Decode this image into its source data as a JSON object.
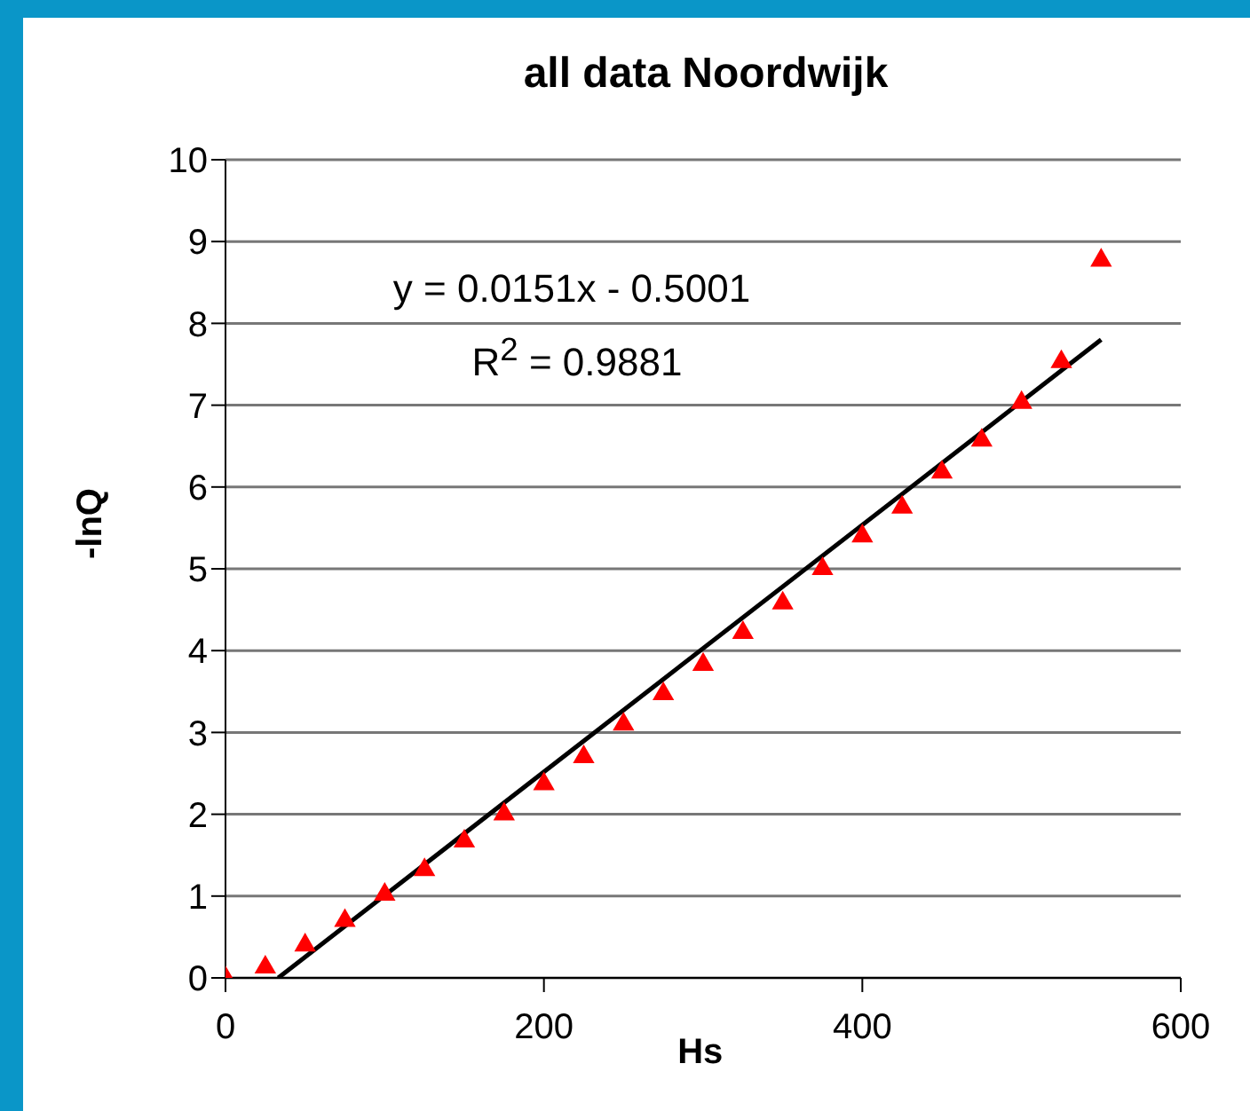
{
  "chart_data": {
    "type": "scatter",
    "title": "all data Noordwijk",
    "xlabel": "Hs",
    "ylabel": "-lnQ",
    "annotations": [
      "y = 0.0151x - 0.5001",
      "R$^{2}$ = 0.9881"
    ],
    "series": [
      {
        "color": "#ff0000",
        "marker": "triangle",
        "x": [
          0,
          25,
          50,
          75,
          100,
          125,
          150,
          175,
          200,
          225,
          250,
          275,
          300,
          325,
          350,
          375,
          400,
          425,
          450,
          475,
          500,
          525,
          550
        ],
        "values": [
          0,
          0.13,
          0.4,
          0.7,
          1.02,
          1.32,
          1.67,
          2.0,
          2.37,
          2.7,
          3.1,
          3.47,
          3.83,
          4.22,
          4.58,
          5.0,
          5.4,
          5.75,
          6.18,
          6.57,
          7.03,
          7.53,
          8.77
        ]
      },
      {
        "type": "line",
        "color": "#000000",
        "line_style": "solid",
        "marker": "none",
        "x": [
          33.12,
          550
        ],
        "values": [
          0,
          7.8
        ]
      }
    ],
    "xlim": [
      0,
      600
    ],
    "xticks": [
      0,
      200,
      400,
      600
    ],
    "ylim": [
      0,
      10
    ],
    "yticks": [
      0,
      1,
      2,
      3,
      4,
      5,
      6,
      7,
      8,
      9,
      10
    ],
    "grid": "y"
  }
}
